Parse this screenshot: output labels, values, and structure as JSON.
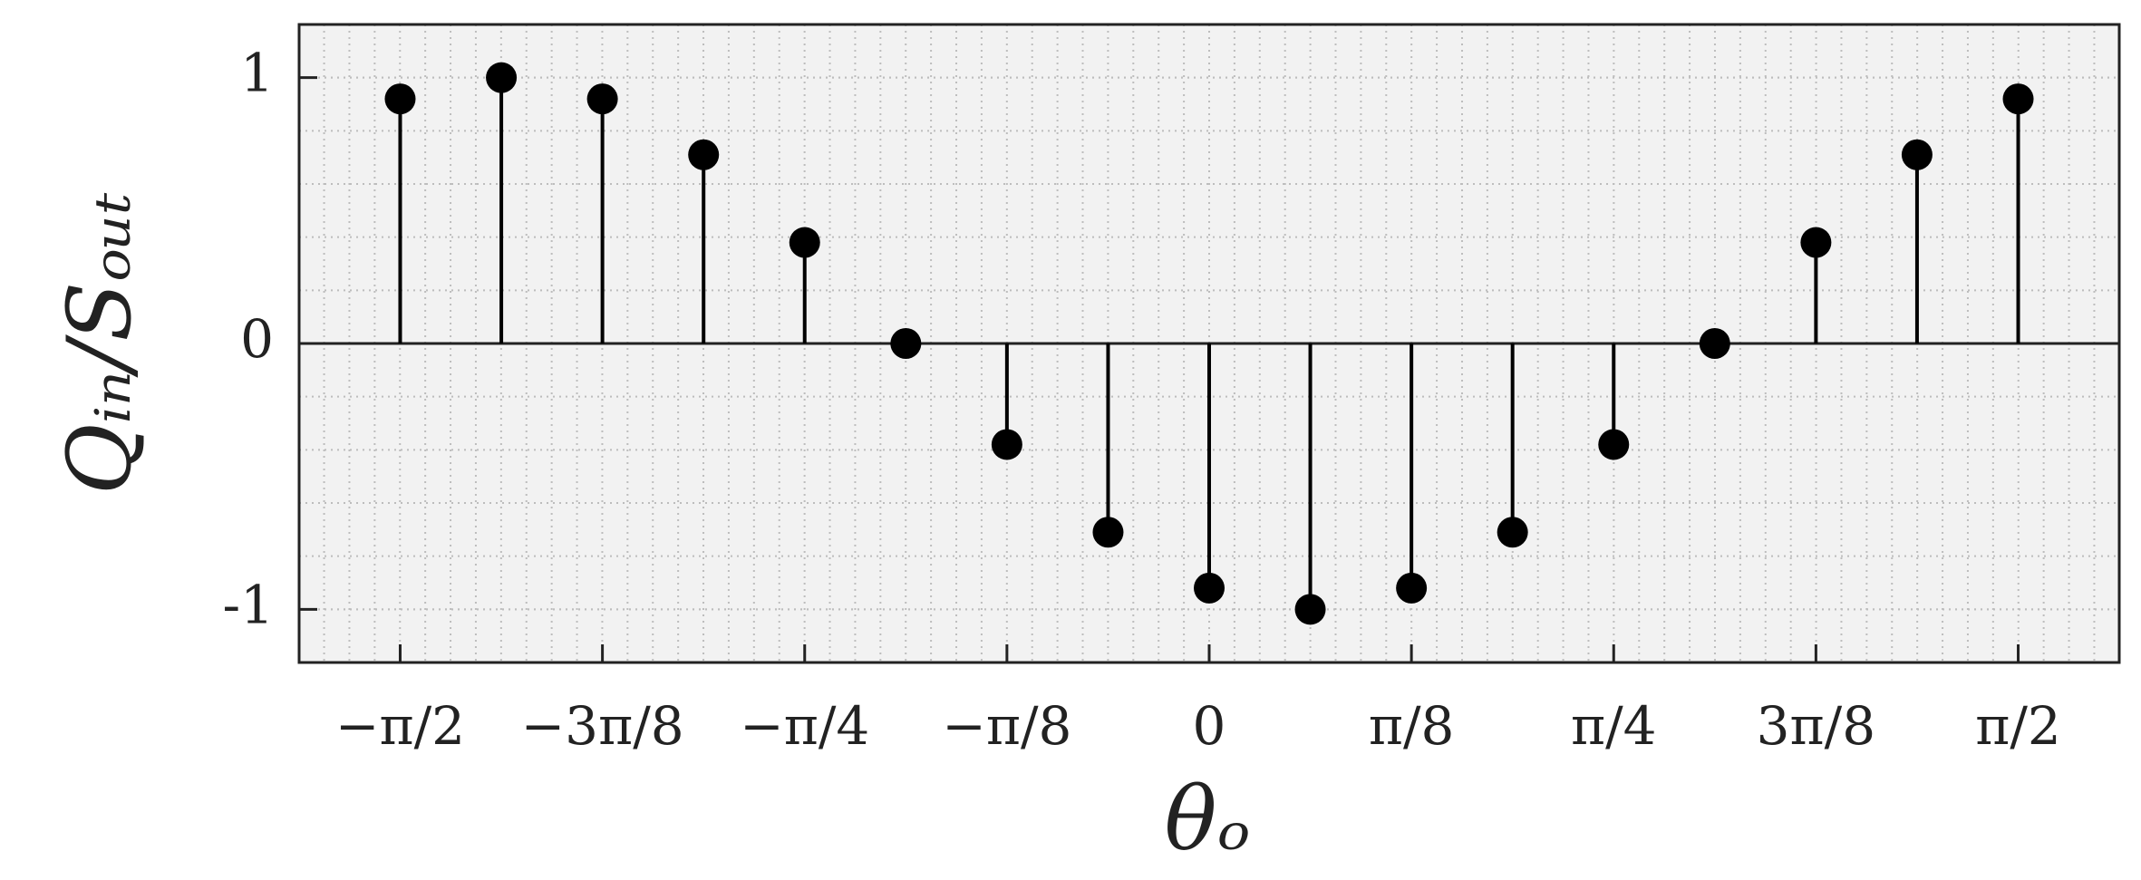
{
  "chart_data": {
    "type": "stem",
    "xlabel": "θₒ",
    "ylabel": "Qᵢₙ/Sₒᵤₜ",
    "x": [
      -1.5708,
      -1.3744,
      -1.1781,
      -0.9817,
      -0.7854,
      -0.589,
      -0.3927,
      -0.1963,
      0,
      0.1963,
      0.3927,
      0.589,
      0.7854,
      0.9817,
      1.1781,
      1.3744,
      1.5708
    ],
    "values": [
      0.92,
      1,
      0.92,
      0.71,
      0.38,
      0,
      -0.38,
      -0.71,
      -0.92,
      -1,
      -0.92,
      -0.71,
      -0.38,
      0,
      0.38,
      0.71,
      0.92
    ],
    "color": "#000000",
    "xlim": [
      -1.767,
      1.767
    ],
    "ylim": [
      -1.2,
      1.2
    ],
    "xticks": [
      {
        "value": -1.5708,
        "label": "−π/2"
      },
      {
        "value": -1.1781,
        "label": "−3π/8"
      },
      {
        "value": -0.7854,
        "label": "−π/4"
      },
      {
        "value": -0.3927,
        "label": "−π/8"
      },
      0,
      {
        "value": 0.3927,
        "label": "π/8"
      },
      {
        "value": 0.7854,
        "label": "π/4"
      },
      {
        "value": 1.1781,
        "label": "3π/8"
      },
      {
        "value": 1.5708,
        "label": "π/2"
      }
    ],
    "yticks": [
      -1,
      0,
      1
    ],
    "grid": true,
    "minor_grid": {
      "x_step": 0.0491,
      "y_step": 0.2
    }
  }
}
